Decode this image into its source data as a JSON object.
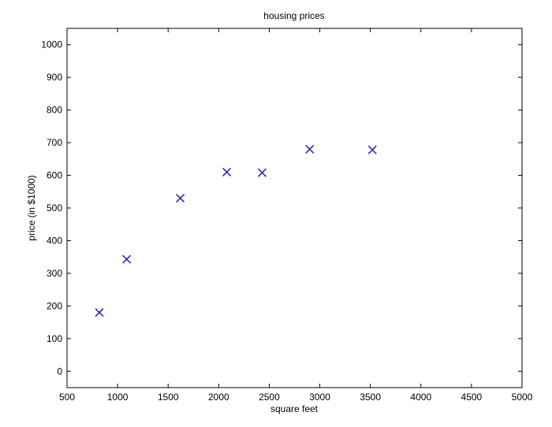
{
  "chart_data": {
    "type": "scatter",
    "title": "housing prices",
    "xlabel": "square feet",
    "ylabel": "price (in $1000)",
    "xlim": [
      500,
      5000
    ],
    "ylim": [
      -50,
      1050
    ],
    "xticks": [
      500,
      1000,
      1500,
      2000,
      2500,
      3000,
      3500,
      4000,
      4500,
      5000
    ],
    "yticks": [
      0,
      100,
      200,
      300,
      400,
      500,
      600,
      700,
      800,
      900,
      1000
    ],
    "grid": false,
    "marker": "x",
    "colors": {
      "marker": "#2b2bb5",
      "axes": "#000000"
    },
    "x": [
      820,
      1090,
      1620,
      2080,
      2430,
      2900,
      3520
    ],
    "y": [
      180,
      343,
      530,
      610,
      608,
      680,
      678
    ]
  }
}
